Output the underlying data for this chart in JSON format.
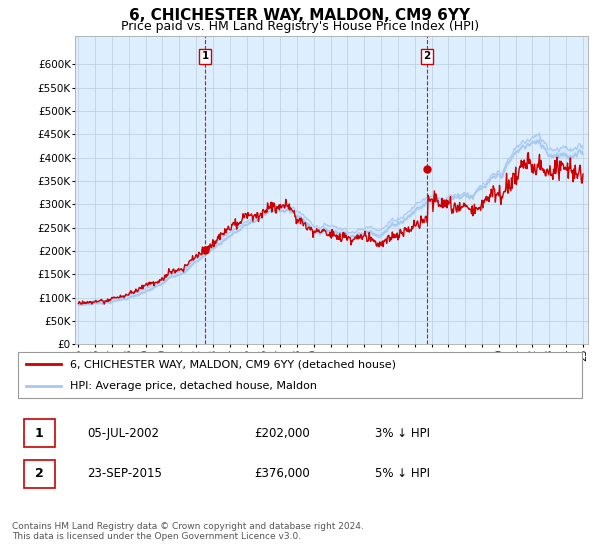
{
  "title": "6, CHICHESTER WAY, MALDON, CM9 6YY",
  "subtitle": "Price paid vs. HM Land Registry's House Price Index (HPI)",
  "ylim": [
    0,
    660000
  ],
  "yticks": [
    0,
    50000,
    100000,
    150000,
    200000,
    250000,
    300000,
    350000,
    400000,
    450000,
    500000,
    550000,
    600000
  ],
  "ytick_labels": [
    "£0",
    "£50K",
    "£100K",
    "£150K",
    "£200K",
    "£250K",
    "£300K",
    "£350K",
    "£400K",
    "£450K",
    "£500K",
    "£550K",
    "£600K"
  ],
  "hpi_color": "#a8c8f0",
  "hpi_fill_color": "#d0e8ff",
  "price_color": "#cc0000",
  "sale1_year": 2002.54,
  "sale1_price": 202000,
  "sale2_year": 2015.72,
  "sale2_price": 376000,
  "legend_label1": "6, CHICHESTER WAY, MALDON, CM9 6YY (detached house)",
  "legend_label2": "HPI: Average price, detached house, Maldon",
  "table_row1": [
    "1",
    "05-JUL-2002",
    "£202,000",
    "3% ↓ HPI"
  ],
  "table_row2": [
    "2",
    "23-SEP-2015",
    "£376,000",
    "5% ↓ HPI"
  ],
  "footnote": "Contains HM Land Registry data © Crown copyright and database right 2024.\nThis data is licensed under the Open Government Licence v3.0.",
  "chart_bg": "#ddeeff",
  "grid_color": "#bbccdd",
  "title_fontsize": 11,
  "subtitle_fontsize": 9
}
